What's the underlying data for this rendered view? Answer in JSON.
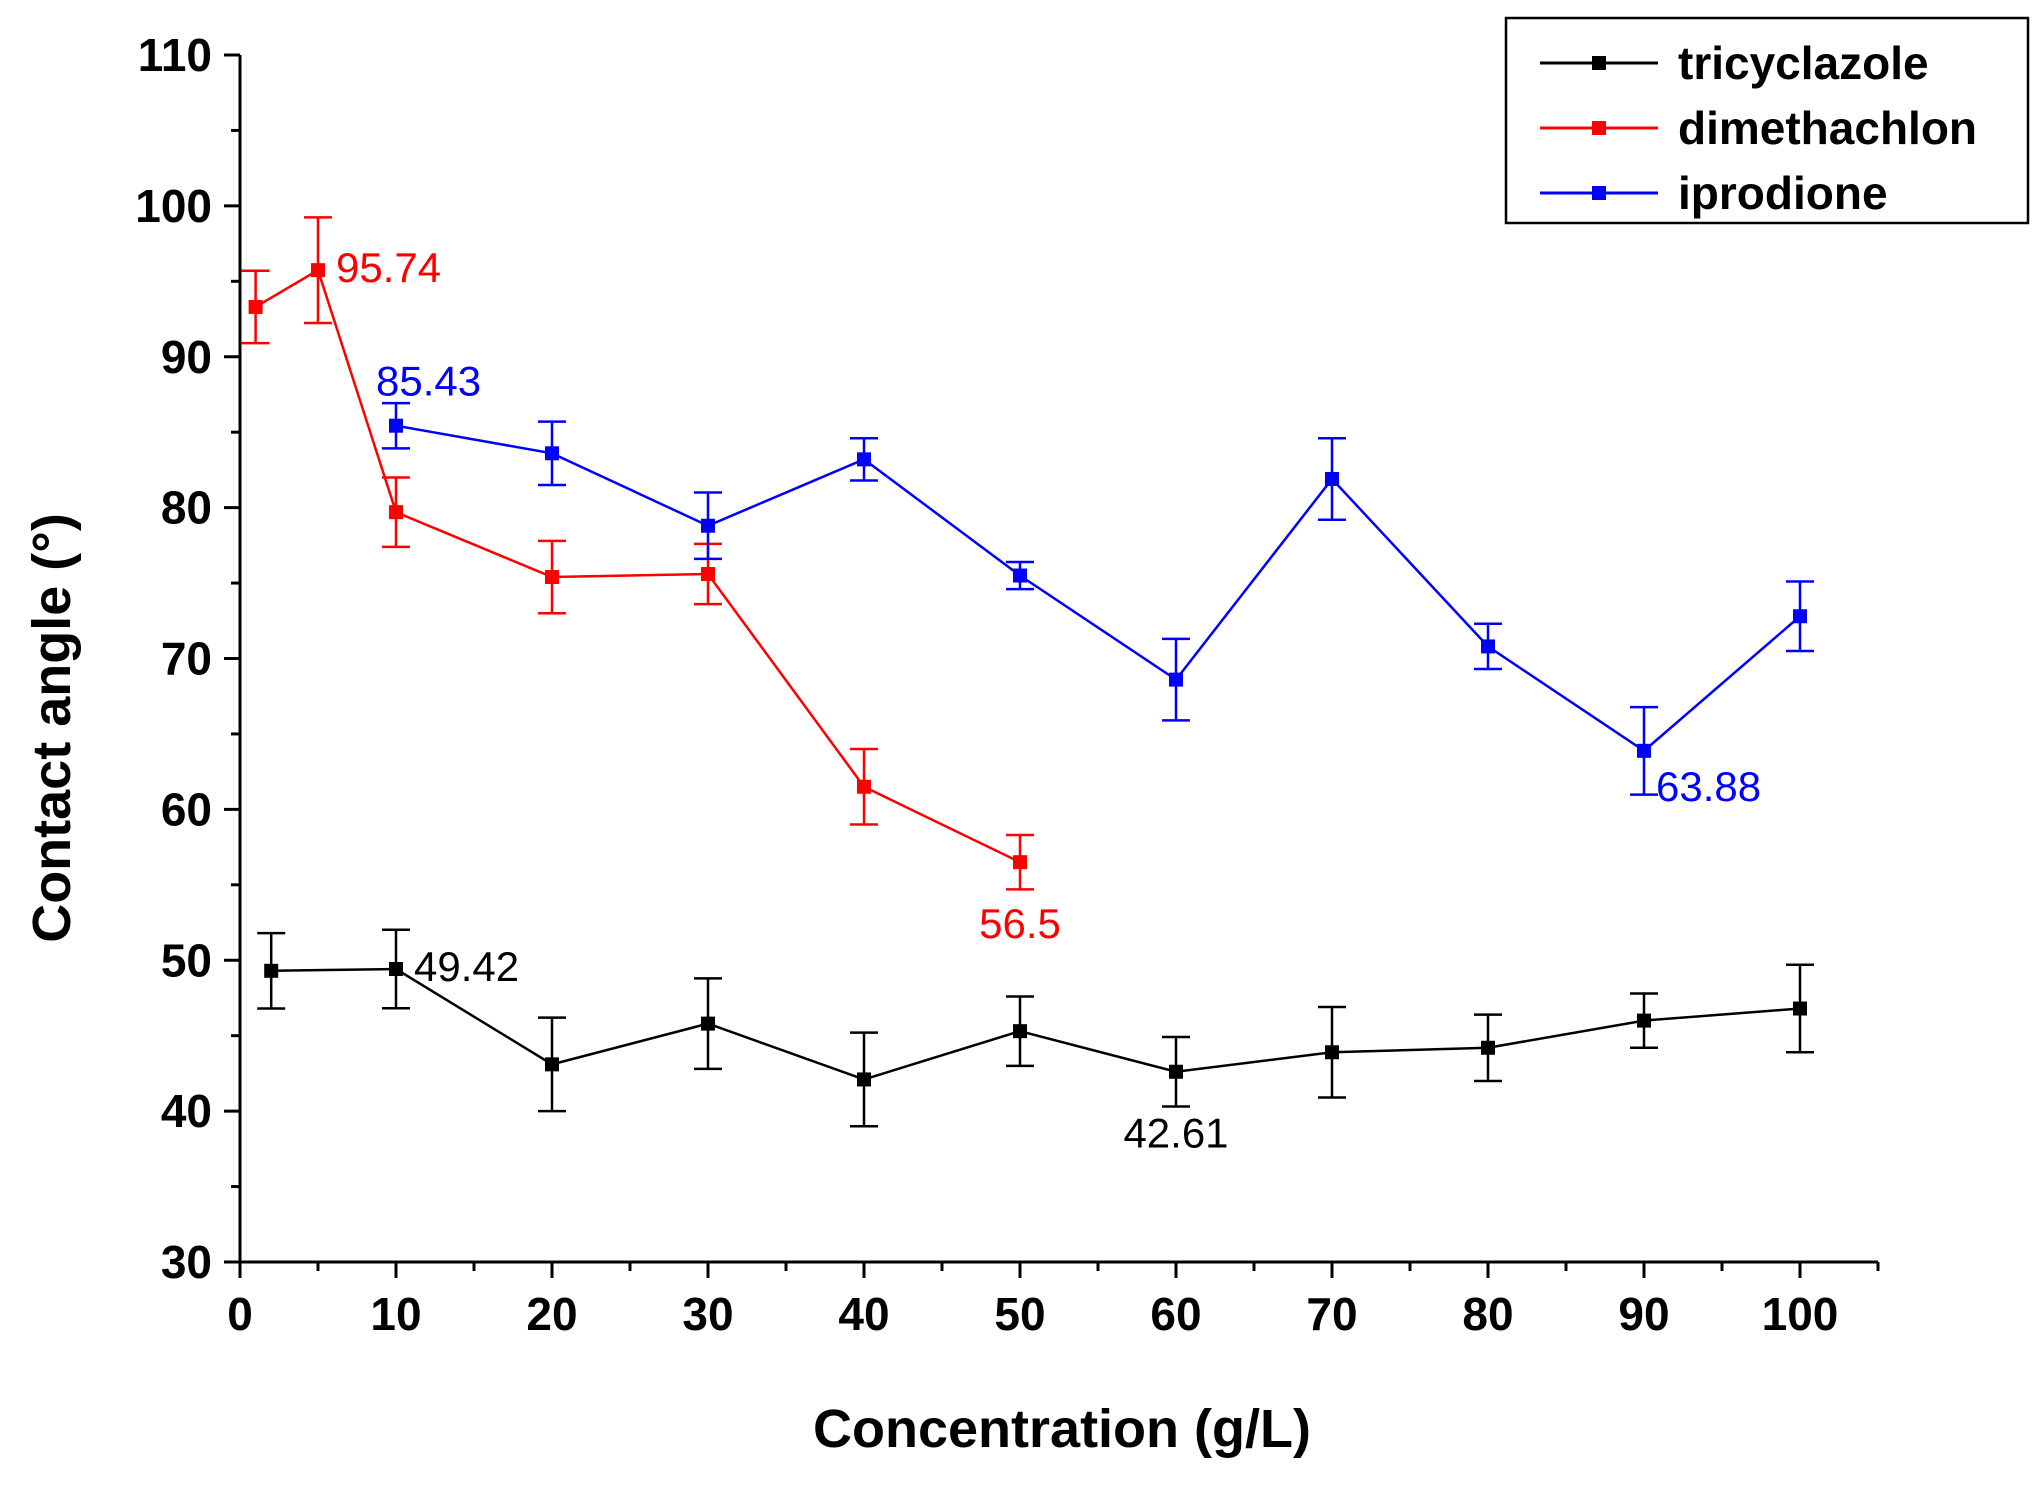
{
  "chart_data": {
    "type": "line",
    "title": "",
    "xlabel": "Concentration (g/L)",
    "ylabel": "Contact angle (°)",
    "xlim": [
      0,
      105
    ],
    "ylim": [
      30,
      110
    ],
    "xticks": [
      0,
      10,
      20,
      30,
      40,
      50,
      60,
      70,
      80,
      90,
      100
    ],
    "yticks": [
      30,
      40,
      50,
      60,
      70,
      80,
      90,
      100,
      110
    ],
    "xtick_labels": [
      "0",
      "10",
      "20",
      "30",
      "40",
      "50",
      "60",
      "70",
      "80",
      "90",
      "100"
    ],
    "ytick_labels": [
      "30",
      "40",
      "50",
      "60",
      "70",
      "80",
      "90",
      "100",
      "110"
    ],
    "grid": false,
    "legend_position": "top-right",
    "series": [
      {
        "name": "tricyclazole",
        "color": "#000000",
        "x": [
          2,
          10,
          20,
          30,
          40,
          50,
          60,
          70,
          80,
          90,
          100
        ],
        "y": [
          49.3,
          49.42,
          43.1,
          45.8,
          42.1,
          45.3,
          42.61,
          43.9,
          44.2,
          46.0,
          46.8
        ],
        "err": [
          2.5,
          2.6,
          3.1,
          3.0,
          3.1,
          2.3,
          2.3,
          3.0,
          2.2,
          1.8,
          2.9
        ]
      },
      {
        "name": "dimethachlon",
        "color": "#ff0000",
        "x": [
          1,
          5,
          10,
          20,
          30,
          40,
          50
        ],
        "y": [
          93.3,
          95.74,
          79.7,
          75.4,
          75.6,
          61.5,
          56.5
        ],
        "err": [
          2.4,
          3.5,
          2.3,
          2.4,
          2.0,
          2.5,
          1.8
        ]
      },
      {
        "name": "iprodione",
        "color": "#0000ff",
        "x": [
          10,
          20,
          30,
          40,
          50,
          60,
          70,
          80,
          90,
          100
        ],
        "y": [
          85.43,
          83.6,
          78.8,
          83.2,
          75.5,
          68.6,
          81.9,
          70.8,
          63.88,
          72.8
        ],
        "err": [
          1.5,
          2.1,
          2.2,
          1.4,
          0.9,
          2.7,
          2.7,
          1.5,
          2.9,
          2.3
        ]
      }
    ],
    "annotations": [
      {
        "text": "95.74",
        "series": "dimethachlon",
        "x": 5,
        "y": 95.74,
        "anchor": "right"
      },
      {
        "text": "85.43",
        "series": "iprodione",
        "x": 10,
        "y": 85.43,
        "anchor": "above"
      },
      {
        "text": "56.5",
        "series": "dimethachlon",
        "x": 50,
        "y": 56.5,
        "anchor": "below"
      },
      {
        "text": "63.88",
        "series": "iprodione",
        "x": 90,
        "y": 63.88,
        "anchor": "below-right"
      },
      {
        "text": "49.42",
        "series": "tricyclazole",
        "x": 10,
        "y": 49.42,
        "anchor": "right"
      },
      {
        "text": "42.61",
        "series": "tricyclazole",
        "x": 60,
        "y": 42.61,
        "anchor": "below"
      }
    ]
  }
}
